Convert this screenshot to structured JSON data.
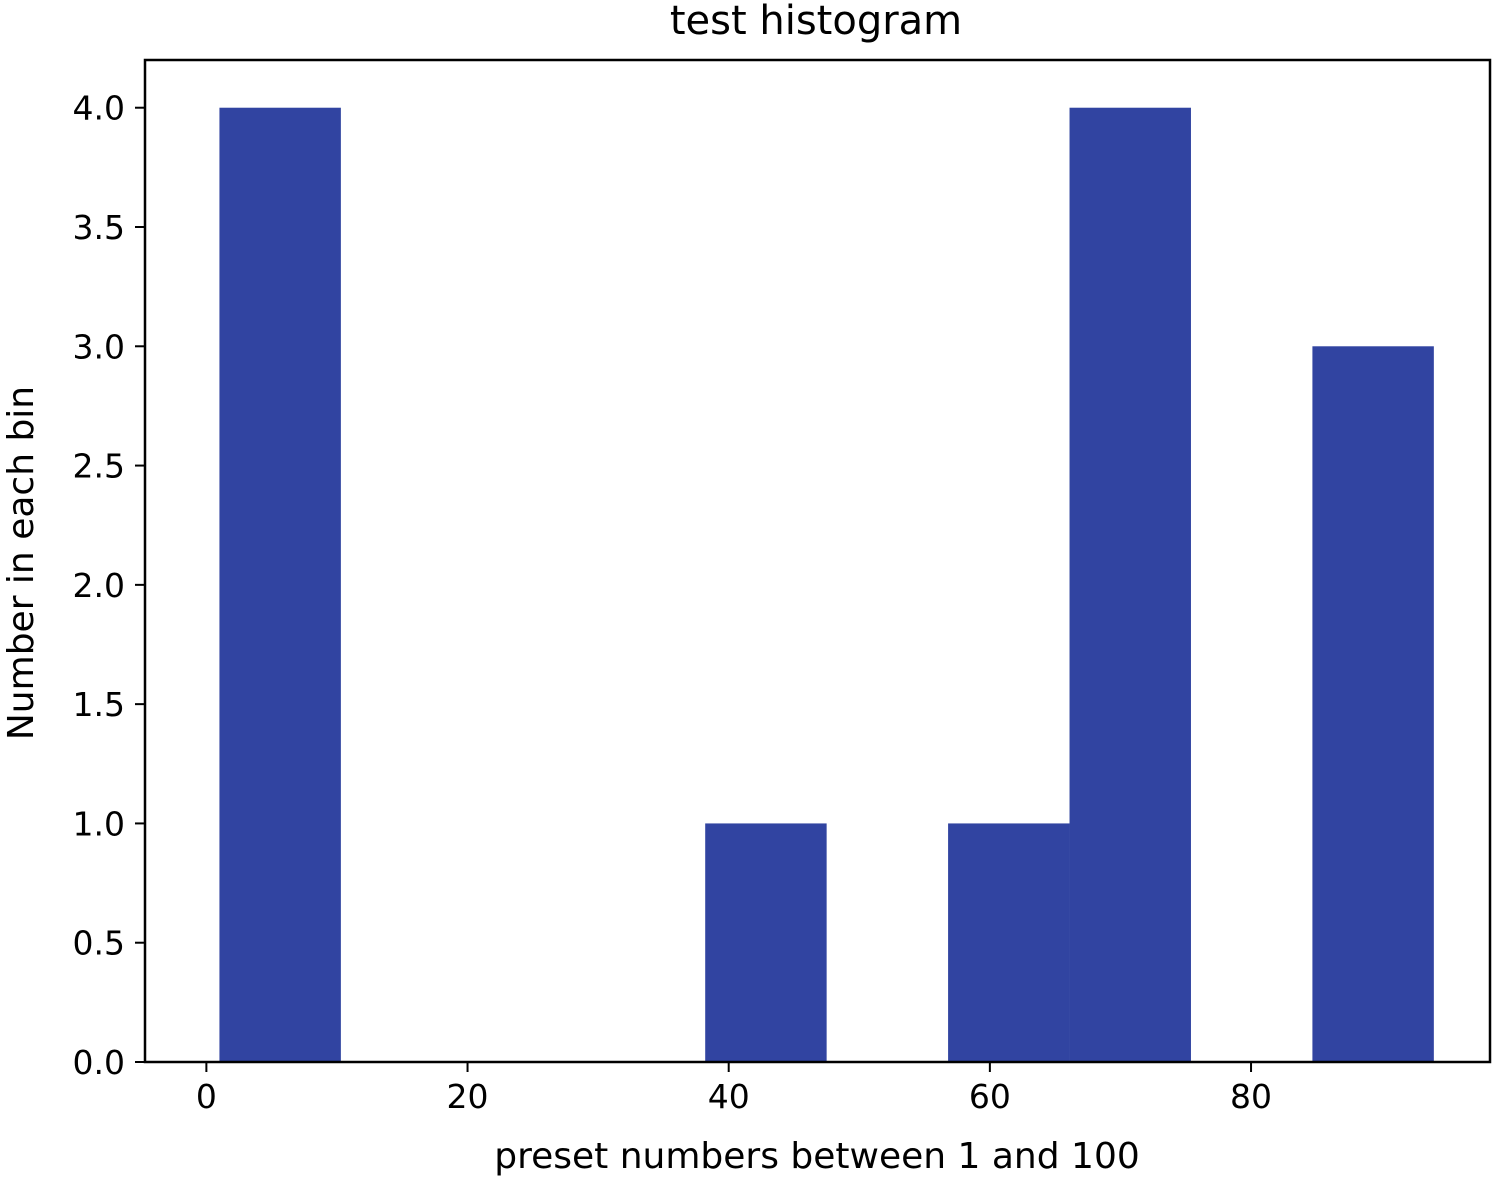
{
  "chart_data": {
    "type": "bar",
    "title": "test histogram",
    "xlabel": "preset numbers between 1 and 100",
    "ylabel": "Number in each bin",
    "xlim": [
      -4.7,
      98.3
    ],
    "ylim": [
      0,
      4.2
    ],
    "xticks": [
      0,
      20,
      40,
      60,
      80
    ],
    "xtick_labels": [
      "0",
      "20",
      "40",
      "60",
      "80"
    ],
    "yticks": [
      0,
      0.5,
      1,
      1.5,
      2,
      2.5,
      3,
      3.5,
      4
    ],
    "ytick_labels": [
      "0.0",
      "0.5",
      "1.0",
      "1.5",
      "2.0",
      "2.5",
      "3.0",
      "3.5",
      "4.0"
    ],
    "bins": [
      {
        "start": 1.0,
        "end": 10.3,
        "count": 4
      },
      {
        "start": 10.3,
        "end": 19.6,
        "count": 0
      },
      {
        "start": 19.6,
        "end": 28.9,
        "count": 0
      },
      {
        "start": 28.9,
        "end": 38.2,
        "count": 0
      },
      {
        "start": 38.2,
        "end": 47.5,
        "count": 1
      },
      {
        "start": 47.5,
        "end": 56.8,
        "count": 0
      },
      {
        "start": 56.8,
        "end": 66.1,
        "count": 1
      },
      {
        "start": 66.1,
        "end": 75.4,
        "count": 4
      },
      {
        "start": 75.4,
        "end": 84.7,
        "count": 0
      },
      {
        "start": 84.7,
        "end": 94.0,
        "count": 3
      }
    ],
    "grid": false,
    "bar_color": "#3144a1"
  }
}
